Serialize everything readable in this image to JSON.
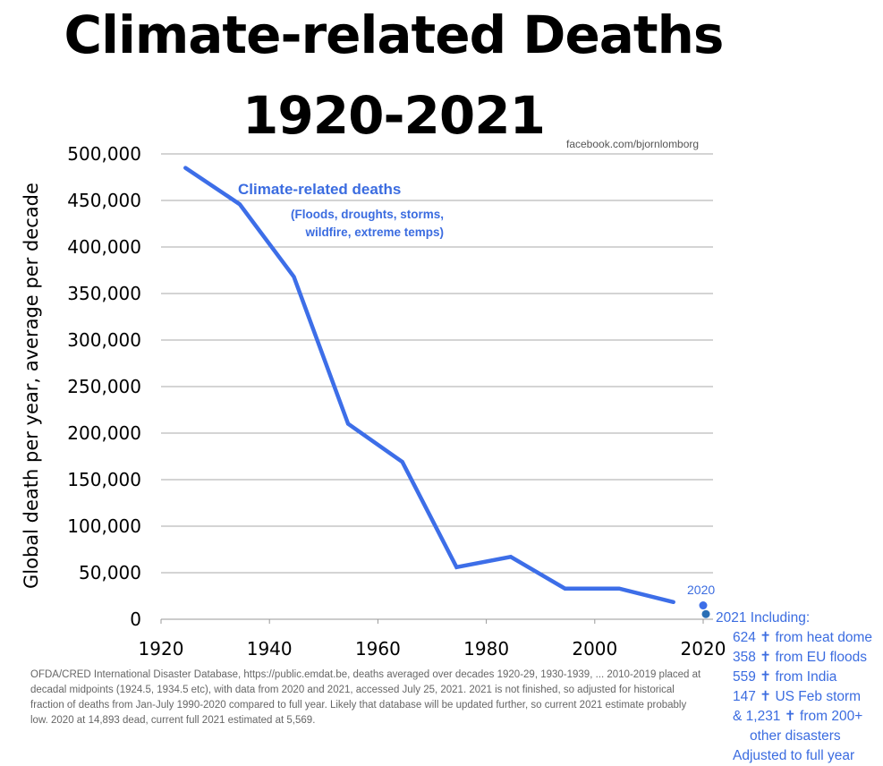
{
  "header": {
    "title_line1": "Climate-related Deaths",
    "title_line2": "1920-2021",
    "credit": "facebook.com/bjornlomborg"
  },
  "chart_data": {
    "type": "line",
    "ylabel": "Global death per year, average per decade",
    "xlabel": "",
    "xlim": [
      1920,
      2020
    ],
    "ylim": [
      0,
      500000
    ],
    "x_ticks": [
      "1920",
      "1940",
      "1960",
      "1980",
      "2000",
      "2020"
    ],
    "y_ticks": [
      "500,000",
      "450,000",
      "400,000",
      "350,000",
      "300,000",
      "250,000",
      "200,000",
      "150,000",
      "100,000",
      "50,000",
      "0"
    ],
    "grid": "horizontal",
    "series": [
      {
        "name": "Climate-related deaths",
        "color": "#3d6ee8",
        "x": [
          1924.5,
          1934.5,
          1944.5,
          1954.5,
          1964.5,
          1974.5,
          1984.5,
          1994.5,
          2004.5,
          2014.5
        ],
        "y": [
          485000,
          446000,
          368000,
          210000,
          169000,
          56000,
          67000,
          33000,
          33000,
          18500
        ]
      }
    ],
    "series_label": {
      "title": "Climate-related deaths",
      "subtitle_line1": "(Floods, droughts, storms,",
      "subtitle_line2": "wildfire, extreme temps)"
    },
    "points": [
      {
        "label": "2020",
        "x": 2020,
        "y": 14893,
        "color": "#3d6ee8"
      },
      {
        "label": "2021",
        "x": 2020.5,
        "y": 5569,
        "color": "#2a6fb5"
      }
    ],
    "annotations": {
      "label_2020": "2020",
      "note_2021": [
        "2021 Including:",
        "624 ✝ from heat dome",
        "358 ✝ from EU floods",
        "559 ✝ from India",
        "147 ✝ US Feb storm",
        "& 1,231 ✝ from 200+",
        "other disasters",
        "Adjusted to full year"
      ]
    }
  },
  "footer": {
    "source": "OFDA/CRED International Disaster Database, https://public.emdat.be, deaths averaged over decades 1920-29, 1930-1939, ... 2010-2019 placed at decadal midpoints (1924.5, 1934.5 etc), with data from 2020 and 2021, accessed July 25, 2021. 2021 is not finished, so adjusted for historical fraction of deaths from Jan-July 1990-2020 compared to full year. Likely that database will be updated further, so current 2021 estimate probably low. 2020 at 14,893 dead, current full 2021 estimated at 5,569."
  }
}
